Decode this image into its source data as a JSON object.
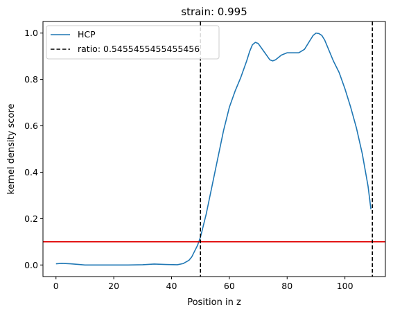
{
  "chart_data": {
    "type": "line",
    "title": "strain: 0.995",
    "xlabel": "Position in z",
    "ylabel": "kernel density score",
    "xlim": [
      -4.5,
      114
    ],
    "ylim": [
      -0.05,
      1.05
    ],
    "xticks": [
      0,
      20,
      40,
      60,
      80,
      100
    ],
    "yticks": [
      0.0,
      0.2,
      0.4,
      0.6,
      0.8,
      1.0
    ],
    "xtick_labels": [
      "0",
      "20",
      "40",
      "60",
      "80",
      "100"
    ],
    "ytick_labels": [
      "0.0",
      "0.2",
      "0.4",
      "0.6",
      "0.8",
      "1.0"
    ],
    "grid": false,
    "legend_position": "top-left",
    "series": [
      {
        "name": "HCP",
        "color": "#1f77b4",
        "x": [
          0,
          2,
          5,
          8,
          10,
          15,
          20,
          25,
          30,
          34,
          38,
          42,
          44,
          46,
          47,
          48,
          49,
          50,
          51,
          52,
          53,
          54,
          55,
          56,
          57,
          58,
          59,
          60,
          62,
          64,
          66,
          67,
          68,
          69,
          70,
          72,
          74,
          75,
          76,
          78,
          80,
          82,
          84,
          86,
          88,
          89,
          90,
          91,
          92,
          93,
          94,
          96,
          98,
          100,
          102,
          104,
          106,
          108,
          109
        ],
        "y": [
          0.005,
          0.007,
          0.005,
          0.002,
          0.0,
          0.0,
          0.0,
          0.0,
          0.001,
          0.004,
          0.002,
          0.001,
          0.006,
          0.02,
          0.035,
          0.06,
          0.085,
          0.12,
          0.17,
          0.22,
          0.28,
          0.34,
          0.4,
          0.46,
          0.52,
          0.58,
          0.63,
          0.68,
          0.75,
          0.81,
          0.88,
          0.92,
          0.95,
          0.96,
          0.955,
          0.92,
          0.885,
          0.88,
          0.885,
          0.905,
          0.915,
          0.915,
          0.915,
          0.93,
          0.97,
          0.99,
          1.0,
          0.998,
          0.99,
          0.97,
          0.94,
          0.88,
          0.83,
          0.76,
          0.68,
          0.59,
          0.48,
          0.34,
          0.24
        ]
      }
    ],
    "vlines": [
      {
        "name": "ratio: 0.5455455455455456",
        "x": 50,
        "color": "#000000",
        "style": "dashed"
      },
      {
        "x": 109.5,
        "color": "#000000",
        "style": "dashed"
      }
    ],
    "hlines": [
      {
        "y": 0.1,
        "color": "#e00000",
        "style": "solid"
      }
    ],
    "legend": [
      {
        "label": "HCP",
        "color": "#1f77b4",
        "style": "solid"
      },
      {
        "label": "ratio: 0.5455455455455456",
        "color": "#000000",
        "style": "dashed"
      }
    ]
  }
}
